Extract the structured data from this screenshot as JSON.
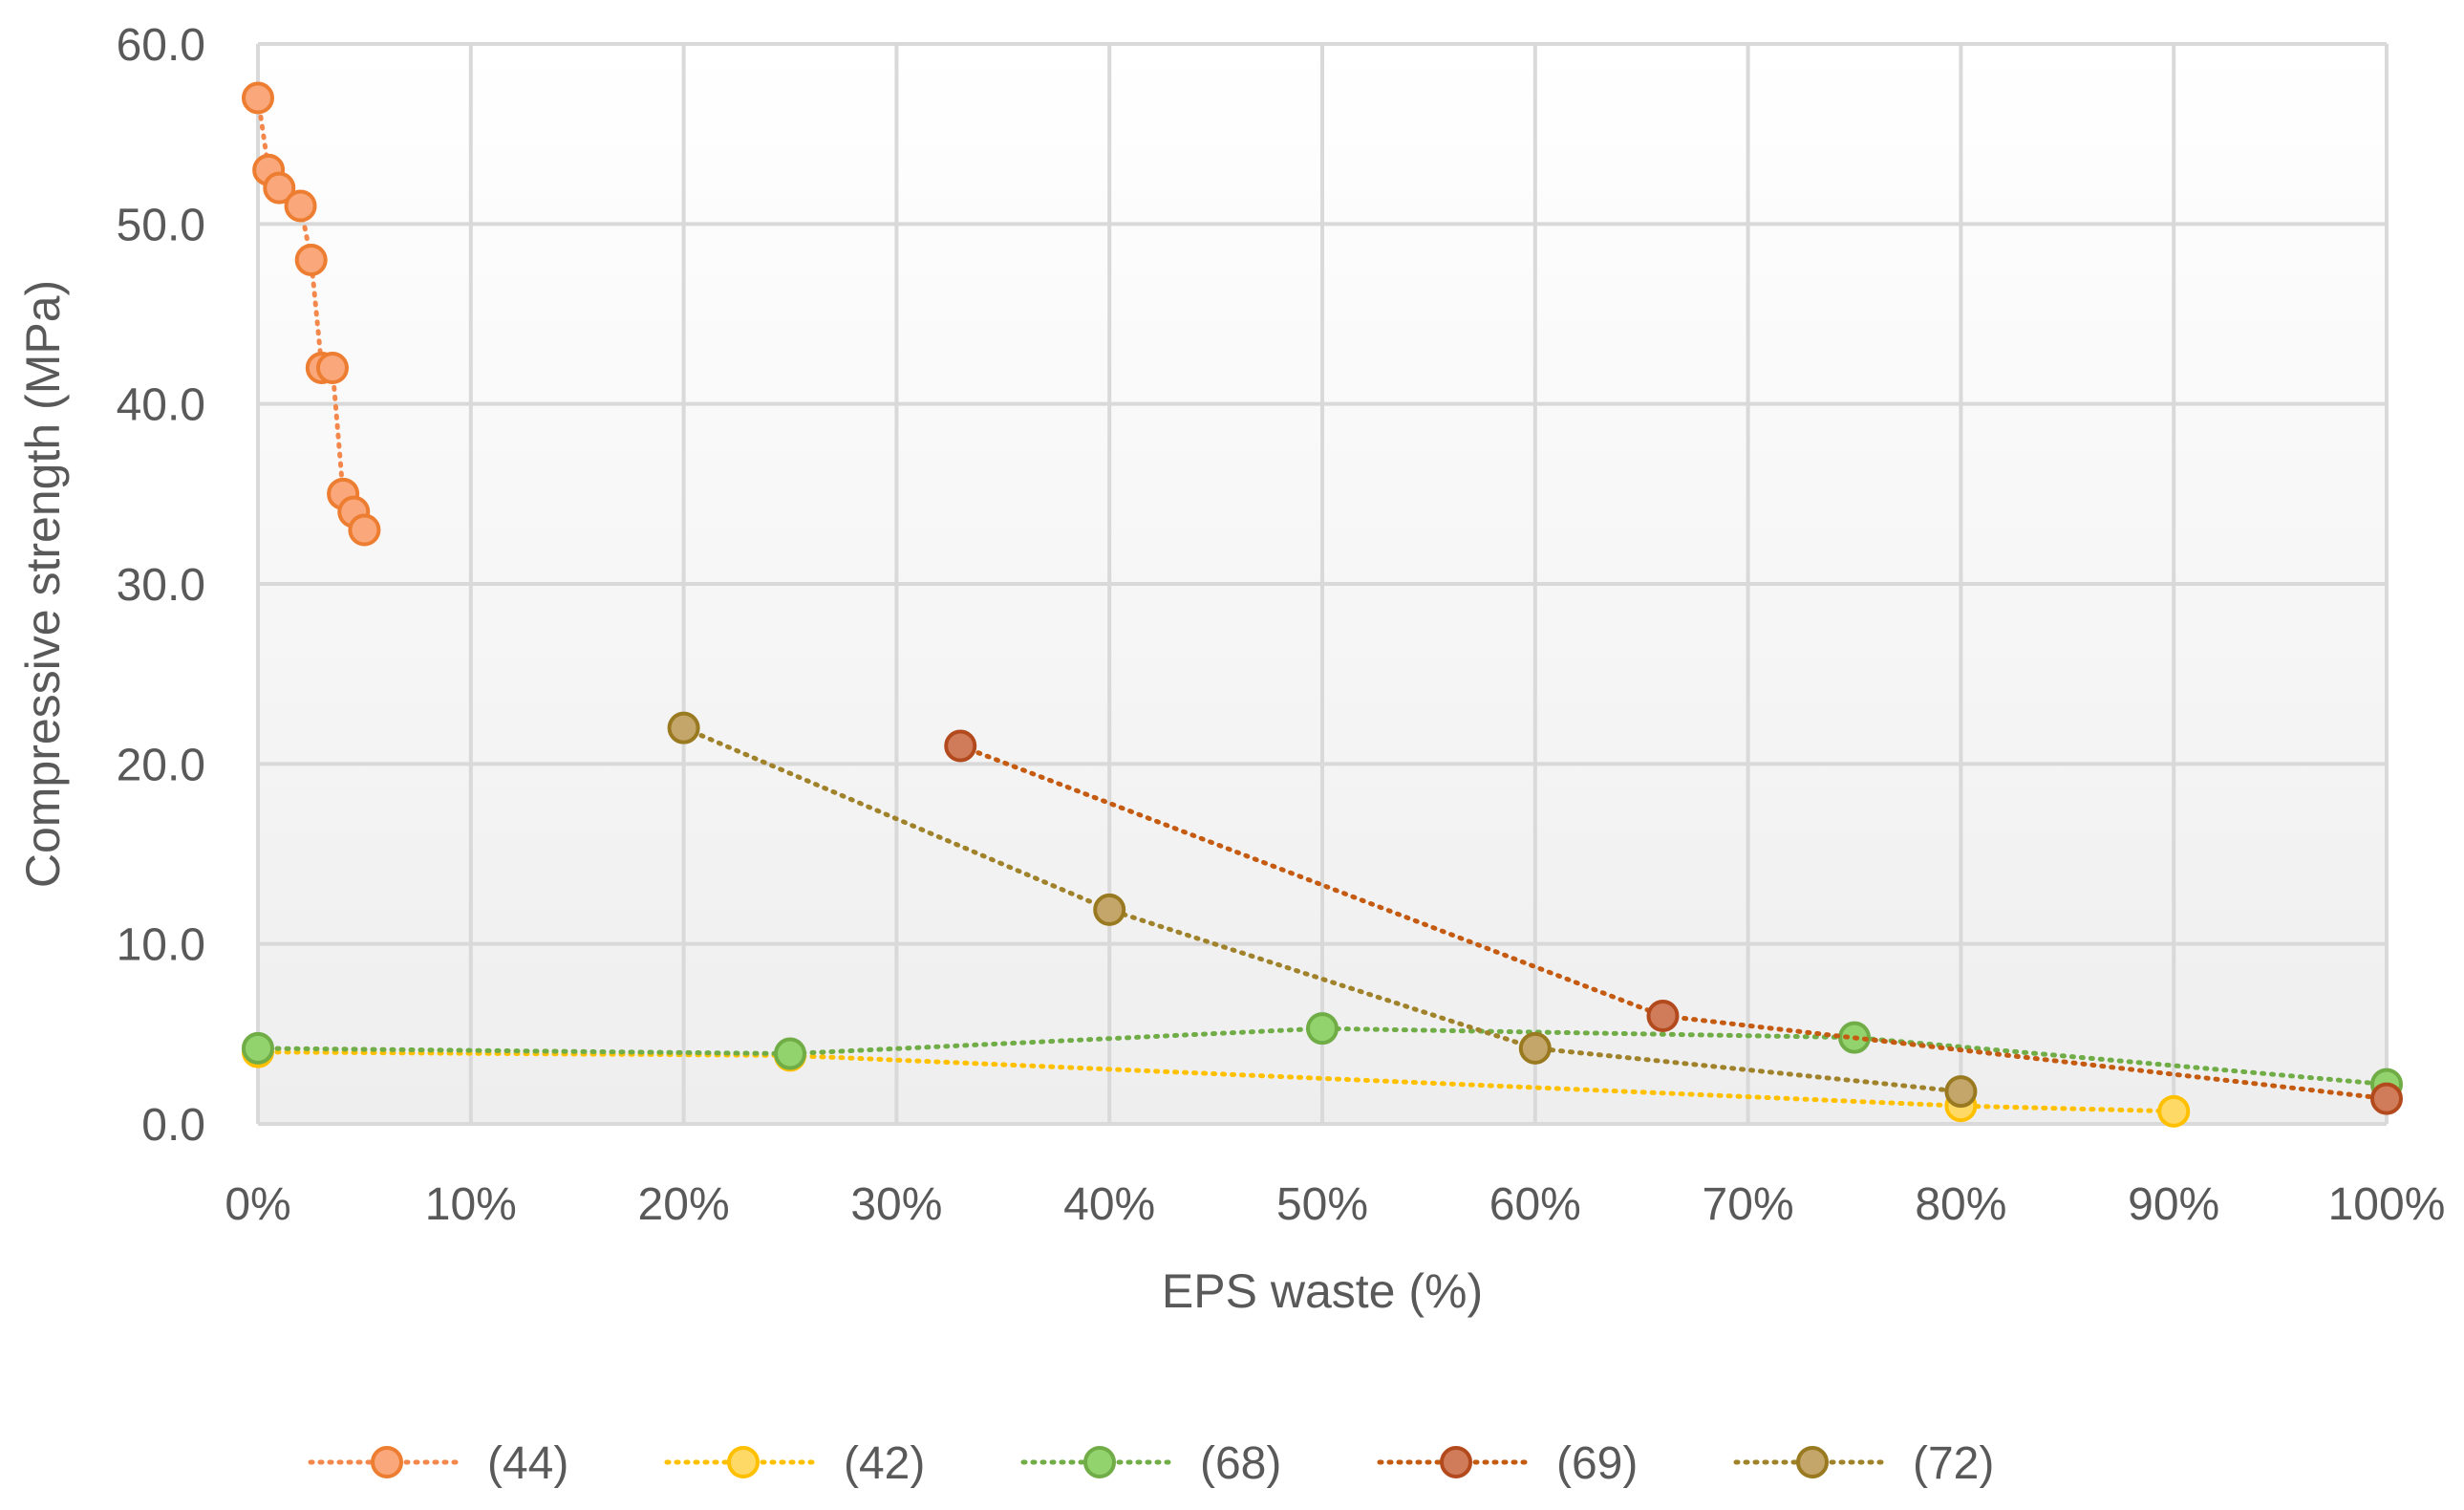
{
  "chart_data": {
    "type": "scatter",
    "title": "",
    "xlabel": "EPS waste (%)",
    "ylabel": "Compressive strength (MPa)",
    "xlim": [
      0,
      100
    ],
    "ylim": [
      0,
      60
    ],
    "x_ticks": [
      "0%",
      "10%",
      "20%",
      "30%",
      "40%",
      "50%",
      "60%",
      "70%",
      "80%",
      "90%",
      "100%"
    ],
    "y_ticks": [
      "0.0",
      "10.0",
      "20.0",
      "30.0",
      "40.0",
      "50.0",
      "60.0"
    ],
    "grid": true,
    "legend_position": "bottom",
    "line_style": "dotted",
    "series": [
      {
        "name": "(44)",
        "color": "#f4874b",
        "fill": "#f9a77b",
        "stroke": "#ed7d31",
        "points": [
          [
            0,
            57
          ],
          [
            0.5,
            53
          ],
          [
            1,
            52
          ],
          [
            2,
            51
          ],
          [
            2.5,
            48
          ],
          [
            3,
            42
          ],
          [
            3.5,
            42
          ],
          [
            4,
            35
          ],
          [
            4.5,
            34
          ],
          [
            5,
            33
          ]
        ]
      },
      {
        "name": "(42)",
        "color": "#ffc000",
        "fill": "#ffd966",
        "stroke": "#ffc000",
        "points": [
          [
            0,
            4
          ],
          [
            25,
            3.8
          ],
          [
            80,
            1
          ],
          [
            90,
            0.7
          ]
        ]
      },
      {
        "name": "(68)",
        "color": "#70ad47",
        "fill": "#92d36e",
        "stroke": "#70ad47",
        "points": [
          [
            0,
            4.2
          ],
          [
            25,
            3.9
          ],
          [
            50,
            5.3
          ],
          [
            75,
            4.8
          ],
          [
            100,
            2.2
          ]
        ]
      },
      {
        "name": "(69)",
        "color": "#c55a11",
        "fill": "#d07c5a",
        "stroke": "#b34a1e",
        "points": [
          [
            33,
            21
          ],
          [
            66,
            6
          ],
          [
            100,
            1.4
          ]
        ]
      },
      {
        "name": "(72)",
        "color": "#a0822a",
        "fill": "#c4a56a",
        "stroke": "#9a7a20",
        "points": [
          [
            20,
            22
          ],
          [
            40,
            11.9
          ],
          [
            60,
            4.2
          ],
          [
            80,
            1.8
          ]
        ]
      }
    ]
  }
}
